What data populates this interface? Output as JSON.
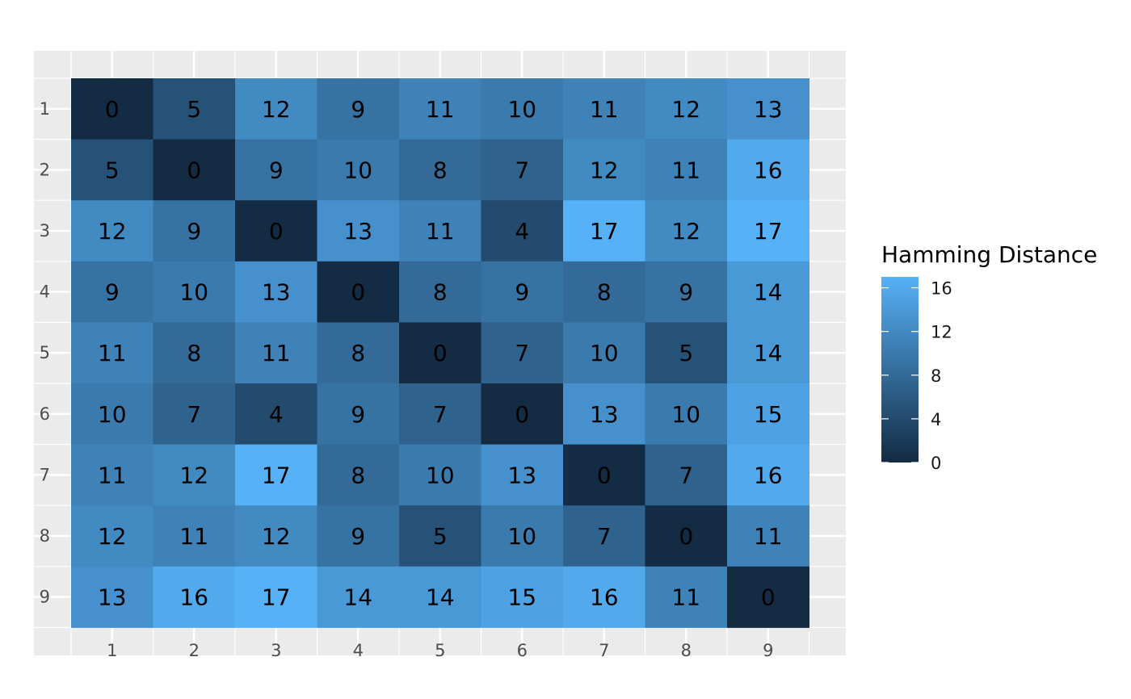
{
  "chart_data": {
    "type": "heatmap",
    "x_categories": [
      "1",
      "2",
      "3",
      "4",
      "5",
      "6",
      "7",
      "8",
      "9"
    ],
    "y_categories": [
      "1",
      "2",
      "3",
      "4",
      "5",
      "6",
      "7",
      "8",
      "9"
    ],
    "values": [
      [
        0,
        5,
        12,
        9,
        11,
        10,
        11,
        12,
        13
      ],
      [
        5,
        0,
        9,
        10,
        8,
        7,
        12,
        11,
        16
      ],
      [
        12,
        9,
        0,
        13,
        11,
        4,
        17,
        12,
        17
      ],
      [
        9,
        10,
        13,
        0,
        8,
        9,
        8,
        9,
        14
      ],
      [
        11,
        8,
        11,
        8,
        0,
        7,
        10,
        5,
        14
      ],
      [
        10,
        7,
        4,
        9,
        7,
        0,
        13,
        10,
        15
      ],
      [
        11,
        12,
        17,
        8,
        10,
        13,
        0,
        7,
        16
      ],
      [
        12,
        11,
        12,
        9,
        5,
        10,
        7,
        0,
        11
      ],
      [
        13,
        16,
        17,
        14,
        14,
        15,
        16,
        11,
        0
      ]
    ],
    "legend": {
      "title": "Hamming Distance",
      "ticks": [
        0,
        4,
        8,
        12,
        16
      ],
      "range": [
        0,
        17
      ],
      "placement": "right"
    },
    "colors": {
      "low": "#132B43",
      "high": "#56B1F7",
      "panel_background": "#EBEBEB",
      "grid": "#FFFFFF"
    },
    "grid": true
  }
}
